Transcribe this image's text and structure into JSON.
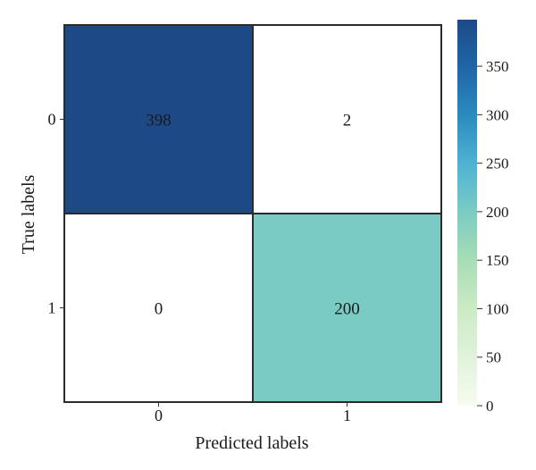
{
  "chart_data": {
    "type": "heatmap",
    "title": "",
    "xlabel": "Predicted labels",
    "ylabel": "True labels",
    "x_categories": [
      "0",
      "1"
    ],
    "y_categories": [
      "0",
      "1"
    ],
    "values": [
      [
        398,
        2
      ],
      [
        0,
        200
      ]
    ],
    "colormap": "GnBu",
    "colorbar": {
      "range": [
        0,
        398
      ],
      "ticks": [
        0,
        50,
        100,
        150,
        200,
        250,
        300,
        350
      ]
    },
    "colors": {
      "low": "#f7fcf0",
      "mid": "#7ecbc4",
      "high": "#1d4a87",
      "grid_line": "#2b2b2b"
    }
  }
}
